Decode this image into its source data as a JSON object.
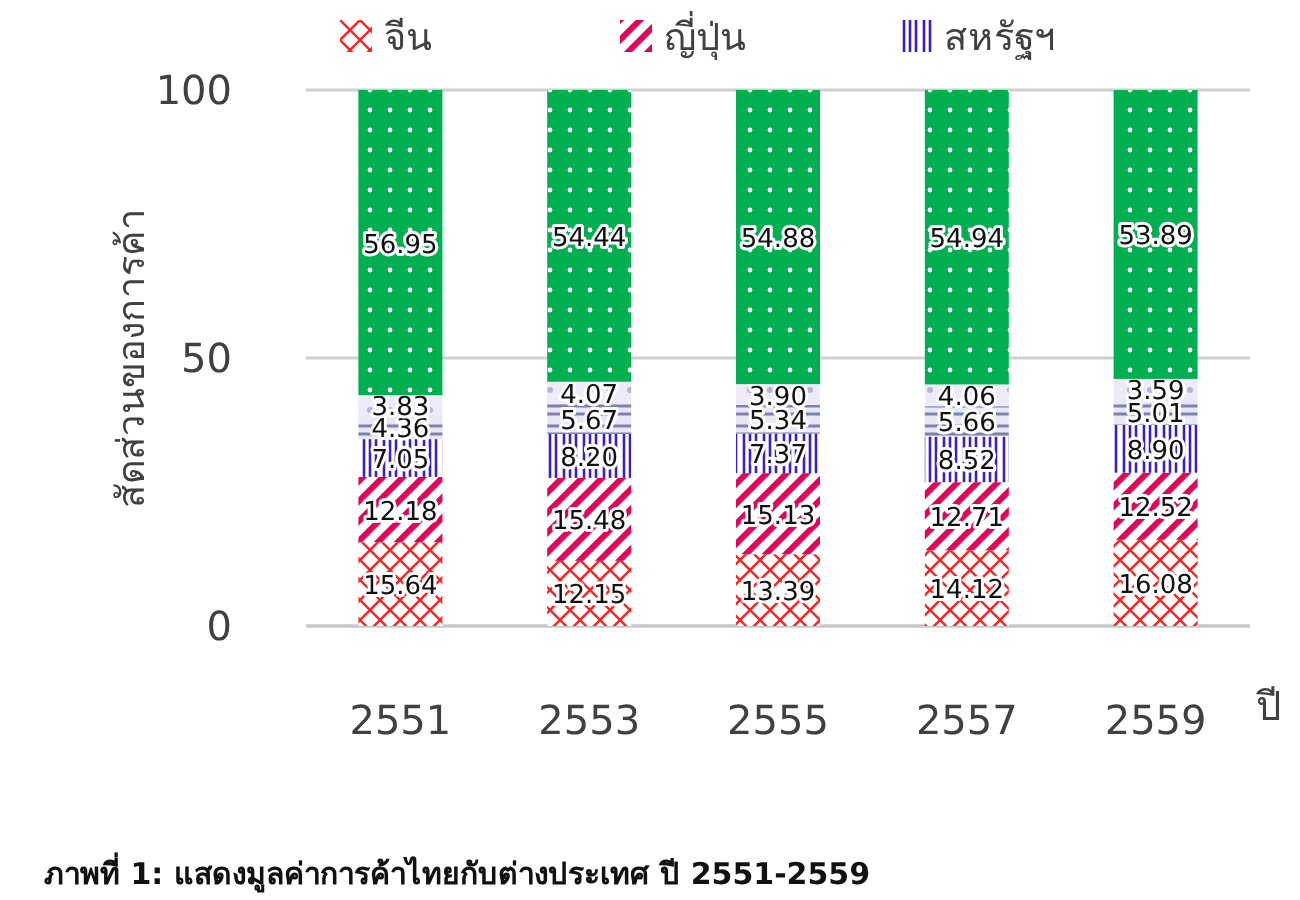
{
  "chart_data": {
    "type": "bar",
    "stacked": true,
    "ylabel": "สัดส่วนของการค้า",
    "xlabel": "ปี",
    "categories": [
      "2551",
      "2553",
      "2555",
      "2557",
      "2559"
    ],
    "series": [
      {
        "name": "จีน",
        "color": "#ff2020",
        "values": [
          15.64,
          12.15,
          13.39,
          14.12,
          16.08
        ],
        "value_labels": [
          "15.64",
          "12.15",
          "13.39",
          "14.12",
          "16.08"
        ]
      },
      {
        "name": "ญี่ปุ่น",
        "color": "#e8005a",
        "values": [
          12.18,
          15.48,
          15.13,
          12.71,
          12.52
        ],
        "value_labels": [
          "12.18",
          "15.48",
          "15.13",
          "12.71",
          "12.52"
        ]
      },
      {
        "name": "สหรัฐฯ",
        "color": "#3b1fc0",
        "values": [
          7.05,
          8.2,
          7.37,
          8.52,
          8.9
        ],
        "value_labels": [
          "7.05",
          "8.20",
          "7.37",
          "8.52",
          "8.90"
        ]
      },
      {
        "color": "#7f7fb0",
        "values": [
          4.36,
          5.67,
          5.34,
          5.66,
          5.01
        ],
        "value_labels": [
          "4.36",
          "5.67",
          "5.34",
          "5.66",
          "5.01"
        ]
      },
      {
        "color": "#b8b0e0",
        "values": [
          3.83,
          4.07,
          3.9,
          4.06,
          3.59
        ],
        "value_labels": [
          "3.83",
          "4.07",
          "3.90",
          "4.06",
          "3.59"
        ]
      },
      {
        "color": "#00b050",
        "values": [
          56.95,
          54.44,
          54.88,
          54.94,
          53.89
        ],
        "value_labels": [
          "56.95",
          "54.44",
          "54.88",
          "54.94",
          "53.89"
        ]
      }
    ],
    "ylim": [
      0,
      100
    ],
    "yticks": [
      0,
      50,
      100
    ],
    "grid": "y",
    "legend": "top",
    "annotations": [
      "ภาพที่ 1: แสดงมูลค่าการค้าไทยกับต่างประเทศ ปี 2551-2559"
    ]
  }
}
